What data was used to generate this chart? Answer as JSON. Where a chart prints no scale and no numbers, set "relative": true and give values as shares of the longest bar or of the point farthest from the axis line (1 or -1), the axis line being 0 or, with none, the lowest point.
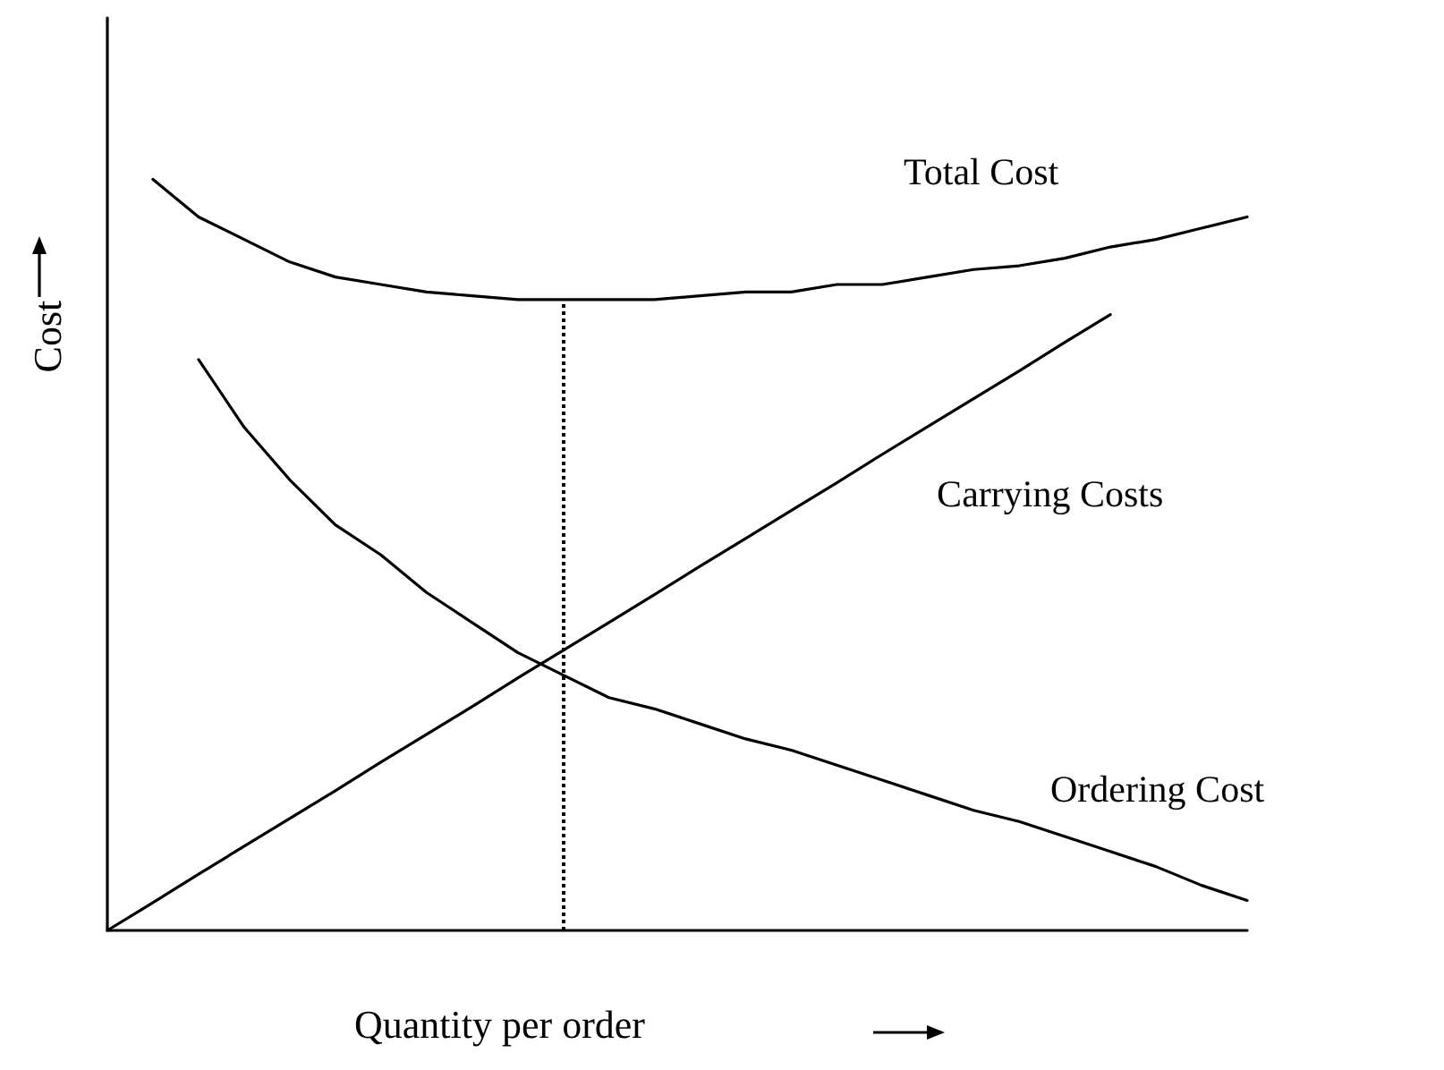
{
  "chart_data": {
    "type": "line",
    "relative": true,
    "xlabel": "Quantity per order",
    "ylabel": "Cost",
    "categories": [
      null,
      null,
      null,
      null,
      null,
      null,
      null,
      null,
      null,
      null,
      null,
      null,
      null,
      null,
      null,
      null,
      null,
      null,
      null,
      null,
      null,
      null,
      null,
      null,
      null,
      null
    ],
    "series": [
      {
        "name": "Total Cost",
        "color": "#000000",
        "values": [
          null,
          1.0,
          0.95,
          0.92,
          0.89,
          0.87,
          0.86,
          0.85,
          0.845,
          0.84,
          0.84,
          0.84,
          0.84,
          0.845,
          0.85,
          0.85,
          0.86,
          0.86,
          0.87,
          0.88,
          0.885,
          0.895,
          0.91,
          0.92,
          0.935,
          0.95
        ]
      },
      {
        "name": "Carrying Costs",
        "color": "#000000",
        "values": [
          0,
          0.037,
          0.075,
          0.112,
          0.149,
          0.186,
          0.224,
          0.261,
          0.298,
          0.336,
          0.373,
          0.41,
          0.447,
          0.485,
          0.522,
          0.559,
          0.596,
          0.634,
          0.671,
          0.708,
          0.745,
          0.783,
          0.82,
          null,
          null,
          null
        ]
      },
      {
        "name": "Ordering Cost",
        "color": "#000000",
        "values": [
          null,
          null,
          0.76,
          0.67,
          0.6,
          0.54,
          0.5,
          0.45,
          0.41,
          0.37,
          0.34,
          0.31,
          0.295,
          0.275,
          0.255,
          0.24,
          0.22,
          0.2,
          0.18,
          0.16,
          0.145,
          0.125,
          0.105,
          0.085,
          0.06,
          0.04
        ]
      }
    ],
    "grid": false,
    "legend": false,
    "marker": "none",
    "line_style": "solid"
  }
}
